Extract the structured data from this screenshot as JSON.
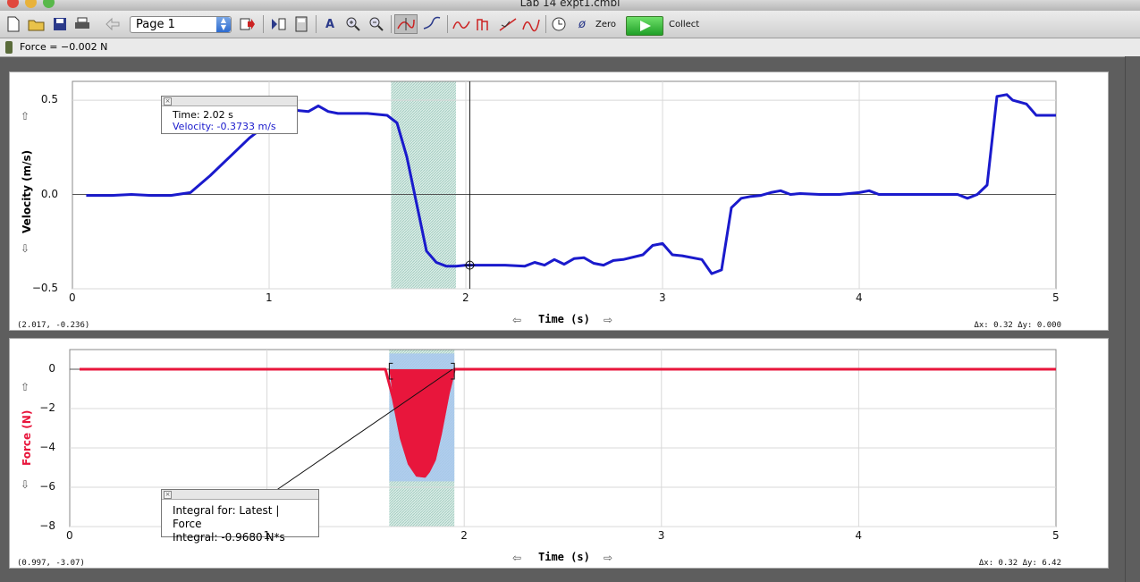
{
  "window": {
    "title": "Lab 14 expt1.cmbl"
  },
  "toolbar": {
    "page_selector": "Page 1",
    "zero_label": "Zero",
    "collect_label": "Collect"
  },
  "meter": {
    "text": "Force = −0.002 N"
  },
  "velocity_graph": {
    "ylabel": "Velocity (m/s)",
    "xlabel": "Time (s)",
    "corner_left": "(2.017, -0.236)",
    "corner_right": "Δx: 0.32 Δy: 0.000",
    "callout": {
      "line1": "Time: 2.02 s",
      "line2": "Velocity: -0.3733 m/s"
    },
    "color": "#1a1acc"
  },
  "force_graph": {
    "ylabel": "Force (N)",
    "xlabel": "Time (s)",
    "corner_left": "(0.997, -3.07)",
    "corner_right": "Δx: 0.32 Δy: 6.42",
    "callout": {
      "line1": "Integral for: Latest | Force",
      "line2": "Integral: -0.9680 N*s"
    },
    "color": "#e8163c"
  },
  "chart_data": [
    {
      "type": "line",
      "xlabel": "Time (s)",
      "ylabel": "Velocity (m/s)",
      "xlim": [
        0,
        5
      ],
      "ylim": [
        -0.5,
        0.6
      ],
      "x_ticks": [
        0,
        1,
        2,
        3,
        4,
        5
      ],
      "y_ticks": [
        -0.5,
        0.0,
        0.5
      ],
      "y_tick_labels": [
        "−0.5",
        "0.0",
        "0.5"
      ],
      "selection": [
        1.62,
        1.95
      ],
      "cursor_x": 2.02,
      "series": [
        {
          "x": [
            0.07,
            0.2,
            0.3,
            0.4,
            0.5,
            0.6,
            0.7,
            0.8,
            0.9,
            1.0,
            1.05,
            1.1,
            1.2,
            1.25,
            1.3,
            1.35,
            1.4,
            1.5,
            1.6,
            1.65,
            1.7,
            1.75,
            1.8,
            1.85,
            1.9,
            1.95,
            2.0,
            2.1,
            2.2,
            2.3,
            2.35,
            2.4,
            2.45,
            2.5,
            2.55,
            2.6,
            2.65,
            2.7,
            2.75,
            2.8,
            2.9,
            2.95,
            3.0,
            3.05,
            3.1,
            3.2,
            3.25,
            3.3,
            3.35,
            3.4,
            3.45,
            3.5,
            3.55,
            3.6,
            3.65,
            3.7,
            3.8,
            3.9,
            4.0,
            4.05,
            4.1,
            4.2,
            4.3,
            4.4,
            4.5,
            4.55,
            4.6,
            4.65,
            4.7,
            4.75,
            4.78,
            4.85,
            4.9,
            5.0
          ],
          "y": [
            -0.005,
            -0.005,
            0.0,
            -0.005,
            -0.005,
            0.01,
            0.1,
            0.2,
            0.3,
            0.38,
            0.42,
            0.45,
            0.44,
            0.47,
            0.44,
            0.43,
            0.43,
            0.43,
            0.42,
            0.38,
            0.2,
            -0.05,
            -0.3,
            -0.36,
            -0.38,
            -0.38,
            -0.375,
            -0.375,
            -0.375,
            -0.38,
            -0.36,
            -0.375,
            -0.345,
            -0.37,
            -0.34,
            -0.335,
            -0.365,
            -0.375,
            -0.35,
            -0.345,
            -0.32,
            -0.27,
            -0.26,
            -0.32,
            -0.325,
            -0.345,
            -0.42,
            -0.4,
            -0.07,
            -0.02,
            -0.01,
            -0.005,
            0.01,
            0.02,
            0.0,
            0.005,
            0.0,
            0.0,
            0.01,
            0.02,
            0.0,
            0.0,
            0.0,
            0.0,
            0.0,
            -0.02,
            0.0,
            0.05,
            0.52,
            0.53,
            0.5,
            0.48,
            0.42,
            0.42
          ]
        }
      ]
    },
    {
      "type": "area",
      "xlabel": "Time (s)",
      "ylabel": "Force (N)",
      "xlim": [
        0,
        5
      ],
      "ylim": [
        -8,
        1
      ],
      "x_ticks": [
        0,
        1,
        2,
        3,
        4,
        5
      ],
      "y_ticks": [
        -8,
        -6,
        -4,
        -2,
        0
      ],
      "y_tick_labels": [
        "−8",
        "−6",
        "−4",
        "−2",
        "0"
      ],
      "selection": [
        1.62,
        1.95
      ],
      "integral_region": [
        1.62,
        1.95
      ],
      "series": [
        {
          "x": [
            0.05,
            1.0,
            1.6,
            1.64,
            1.68,
            1.72,
            1.76,
            1.8,
            1.82,
            1.85,
            1.88,
            1.92,
            1.95,
            2.0,
            3.0,
            4.0,
            5.0
          ],
          "y": [
            0.0,
            0.0,
            0.0,
            -1.5,
            -3.5,
            -4.8,
            -5.4,
            -5.45,
            -5.2,
            -4.6,
            -3.3,
            -1.2,
            0.0,
            0.0,
            0.0,
            0.0,
            0.0
          ]
        }
      ]
    }
  ]
}
